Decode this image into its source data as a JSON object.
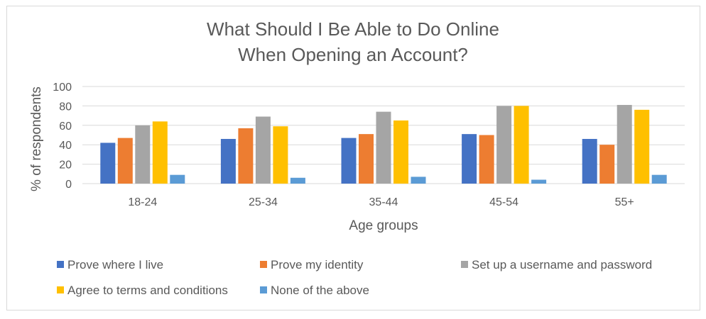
{
  "chart_data": {
    "type": "bar",
    "title_lines": [
      "What Should I Be Able to Do Online",
      "When Opening an Account?"
    ],
    "xlabel": "Age groups",
    "ylabel": "% of respondents",
    "ylim": [
      0,
      100
    ],
    "yticks": [
      0,
      20,
      40,
      60,
      80,
      100
    ],
    "grid": true,
    "legend_position": "bottom",
    "categories": [
      "18-24",
      "25-34",
      "35-44",
      "45-54",
      "55+"
    ],
    "series": [
      {
        "name": "Prove where I live",
        "color": "#4472c4",
        "values": [
          42,
          46,
          47,
          51,
          46
        ]
      },
      {
        "name": "Prove my identity",
        "color": "#ed7d31",
        "values": [
          47,
          57,
          51,
          50,
          40
        ]
      },
      {
        "name": "Set up a username and password",
        "color": "#a5a5a5",
        "values": [
          60,
          69,
          74,
          80,
          81
        ]
      },
      {
        "name": "Agree to terms and conditions",
        "color": "#ffc000",
        "values": [
          64,
          59,
          65,
          80,
          76
        ]
      },
      {
        "name": "None of the above",
        "color": "#5b9bd5",
        "values": [
          9,
          6,
          7,
          4,
          9
        ]
      }
    ]
  }
}
